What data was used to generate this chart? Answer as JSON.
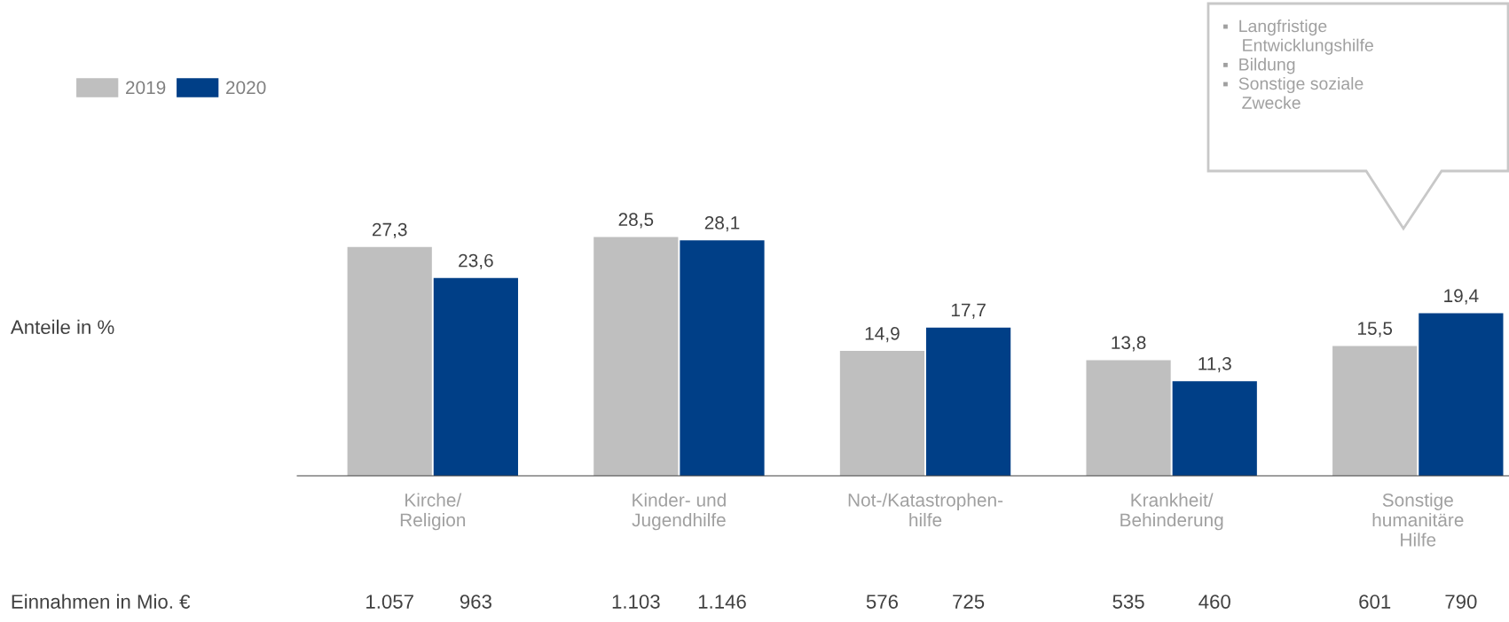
{
  "chart_data": {
    "type": "bar",
    "categories": [
      "Kirche/\nReligion",
      "Kinder- und\nJugendhilfe",
      "Not-/Katastrophen-\nhilfe",
      "Krankheit/\nBehinderung",
      "Sonstige\nhumanitäre\nHilfe"
    ],
    "series": [
      {
        "name": "2019",
        "color": "#bfbfbf",
        "values": [
          27.3,
          28.5,
          14.9,
          13.8,
          15.5
        ],
        "value_labels": [
          "27,3",
          "28,5",
          "14,9",
          "13,8",
          "15,5"
        ]
      },
      {
        "name": "2020",
        "color": "#003f87",
        "values": [
          23.6,
          28.1,
          17.7,
          11.3,
          19.4
        ],
        "value_labels": [
          "23,6",
          "28,1",
          "17,7",
          "11,3",
          "19,4"
        ]
      }
    ],
    "legend": "top left",
    "grid": false,
    "annotations": [
      "Anteile in %",
      "Einnahmen in Mio. €",
      "1.057",
      "963",
      "1.103",
      "1.146",
      "576",
      "725",
      "535",
      "460",
      "601",
      "790",
      "▪  Langfristige\n    Entwicklungshilfe\n▪  Bildung\n▪  Sonstige soziale\n    Zwecke"
    ]
  }
}
